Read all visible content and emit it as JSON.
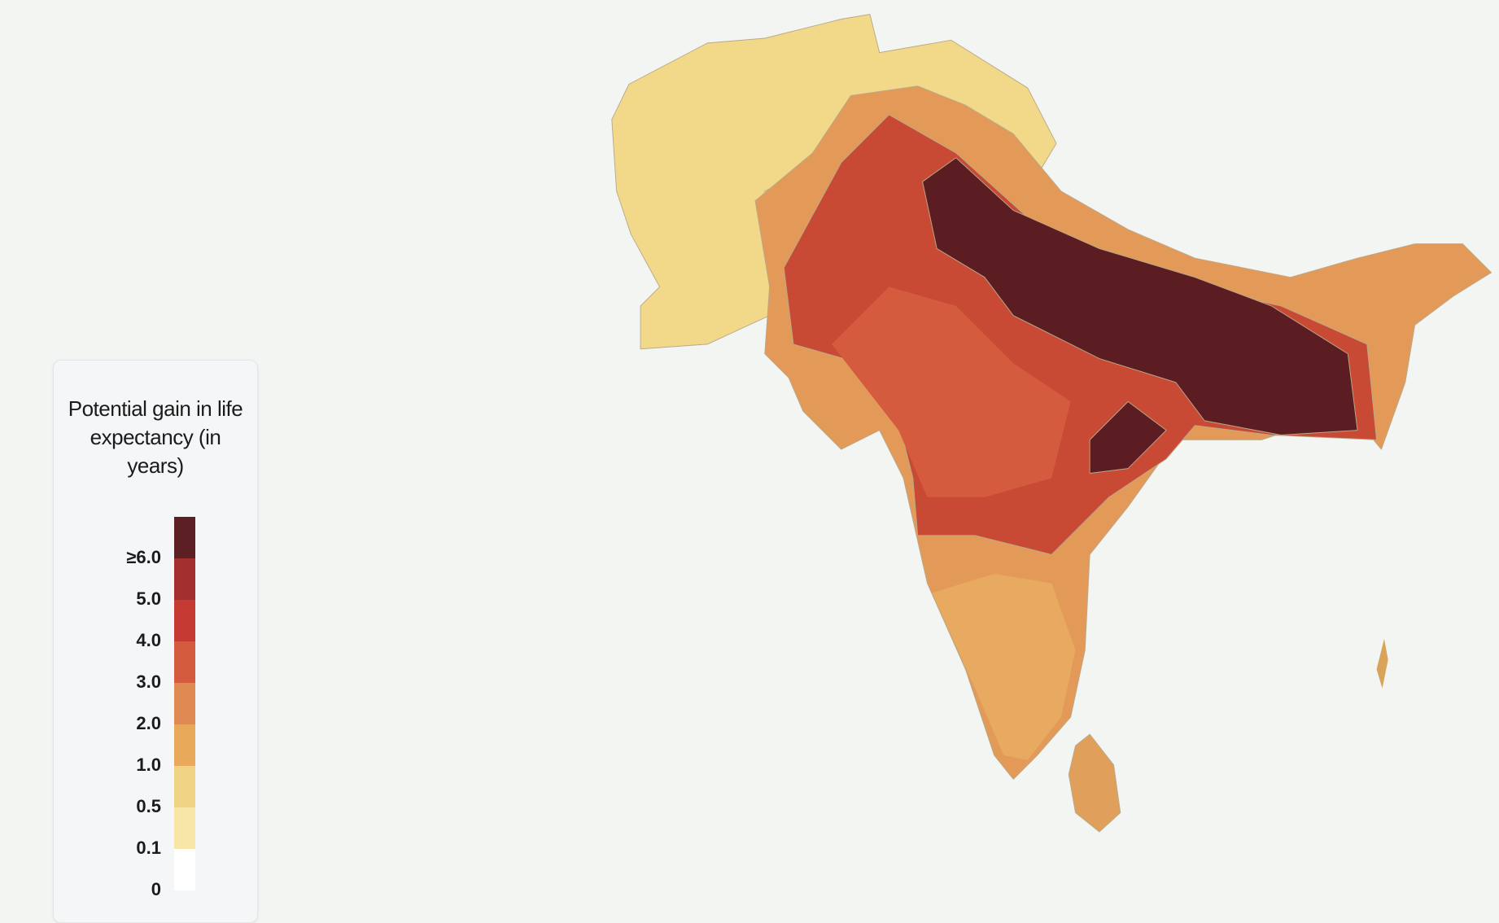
{
  "legend": {
    "title": "Potential gain in life expectancy (in years)",
    "labels": [
      "≥6.0",
      "5.0",
      "4.0",
      "3.0",
      "2.0",
      "1.0",
      "0.5",
      "0.1",
      "0"
    ],
    "colors": [
      "#5c1f24",
      "#a3302e",
      "#c53b33",
      "#d45b3e",
      "#df8a53",
      "#e8aa5a",
      "#f1d385",
      "#f7e6a8",
      "#ffffff"
    ]
  }
}
